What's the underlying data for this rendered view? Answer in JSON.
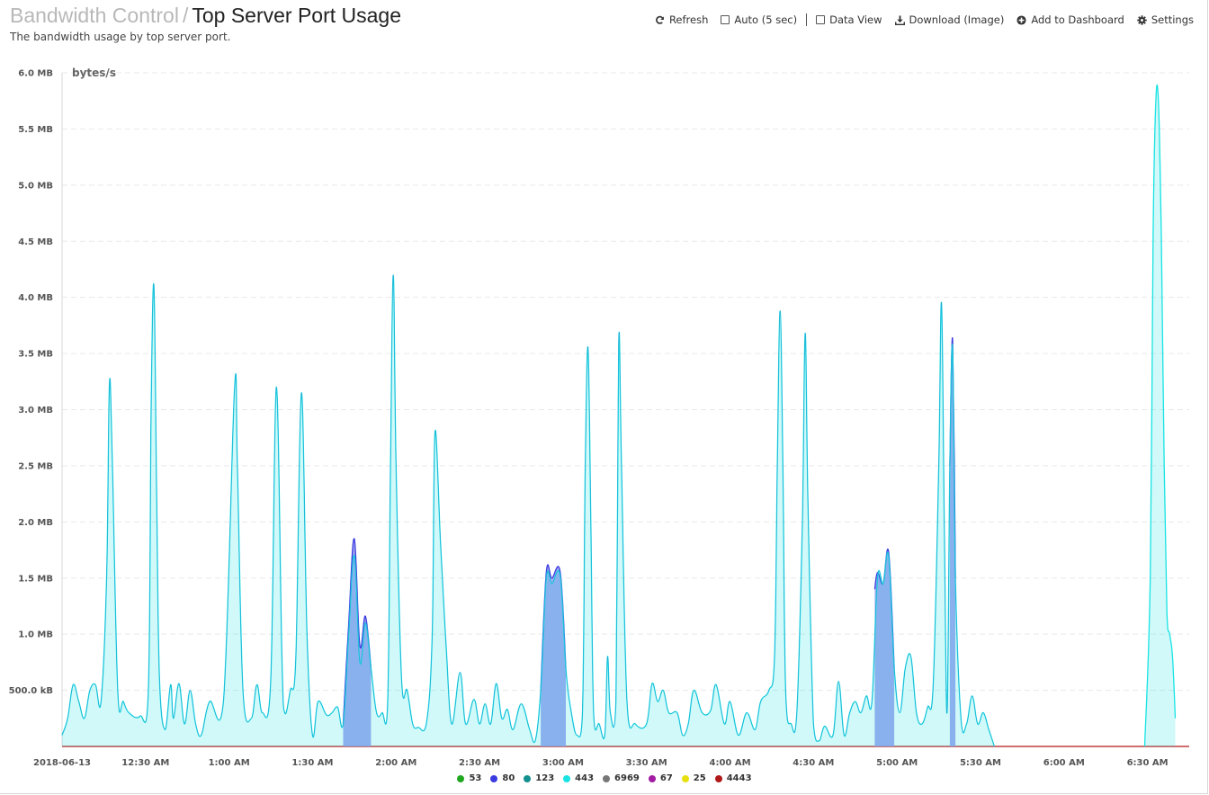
{
  "header": {
    "breadcrumb": "Bandwidth Control",
    "separator": "/",
    "page_title": "Top Server Port Usage",
    "subtitle": "The bandwidth usage by top server port."
  },
  "toolbar": {
    "refresh_label": "Refresh",
    "auto_label": "Auto (5 sec)",
    "data_view_label": "Data View",
    "download_label": "Download (Image)",
    "dashboard_label": "Add to Dashboard",
    "settings_label": "Settings"
  },
  "chart_data": {
    "type": "area",
    "ylabel": "bytes/s",
    "ylim": [
      0,
      6000000
    ],
    "y_tick_values": [
      500000,
      1000000,
      1500000,
      2000000,
      2500000,
      3000000,
      3500000,
      4000000,
      4500000,
      5000000,
      5500000,
      6000000
    ],
    "y_tick_labels": [
      "500.0 kB",
      "1.0 MB",
      "1.5 MB",
      "2.0 MB",
      "2.5 MB",
      "3.0 MB",
      "3.5 MB",
      "4.0 MB",
      "4.5 MB",
      "5.0 MB",
      "5.5 MB",
      "6.0 MB"
    ],
    "x_range_minutes": [
      0,
      405
    ],
    "x_tick_minutes": [
      0,
      30,
      60,
      90,
      120,
      150,
      180,
      210,
      240,
      270,
      300,
      330,
      360,
      390
    ],
    "x_tick_labels": [
      "2018-06-13",
      "12:30 AM",
      "1:00 AM",
      "1:30 AM",
      "2:00 AM",
      "2:30 AM",
      "3:00 AM",
      "3:30 AM",
      "4:00 AM",
      "4:30 AM",
      "5:00 AM",
      "5:30 AM",
      "6:00 AM",
      "6:30 AM"
    ],
    "grid": true,
    "legend_position": "bottom",
    "series": [
      {
        "name": "53",
        "color": "#1fa71f"
      },
      {
        "name": "80",
        "color": "#3b3be0"
      },
      {
        "name": "123",
        "color": "#138f8f"
      },
      {
        "name": "443",
        "color": "#19e3e3"
      },
      {
        "name": "6969",
        "color": "#777777"
      },
      {
        "name": "67",
        "color": "#a31ba3"
      },
      {
        "name": "25",
        "color": "#e8e00e"
      },
      {
        "name": "4443",
        "color": "#b01818"
      }
    ],
    "series_443_points": [
      [
        0,
        100000
      ],
      [
        2,
        250000
      ],
      [
        4,
        550000
      ],
      [
        6,
        400000
      ],
      [
        8,
        250000
      ],
      [
        10,
        500000
      ],
      [
        12,
        550000
      ],
      [
        14,
        400000
      ],
      [
        16,
        1500000
      ],
      [
        17,
        3220000
      ],
      [
        18,
        2600000
      ],
      [
        20,
        500000
      ],
      [
        22,
        400000
      ],
      [
        24,
        300000
      ],
      [
        28,
        270000
      ],
      [
        31,
        500000
      ],
      [
        32,
        3000000
      ],
      [
        33,
        4100000
      ],
      [
        34,
        2200000
      ],
      [
        35,
        600000
      ],
      [
        37,
        150000
      ],
      [
        39,
        550000
      ],
      [
        40,
        250000
      ],
      [
        42,
        560000
      ],
      [
        44,
        200000
      ],
      [
        46,
        500000
      ],
      [
        48,
        200000
      ],
      [
        50,
        100000
      ],
      [
        53,
        400000
      ],
      [
        58,
        400000
      ],
      [
        62,
        3200000
      ],
      [
        63,
        2500000
      ],
      [
        65,
        500000
      ],
      [
        68,
        250000
      ],
      [
        70,
        550000
      ],
      [
        72,
        300000
      ],
      [
        75,
        600000
      ],
      [
        77,
        3200000
      ],
      [
        79,
        800000
      ],
      [
        80,
        300000
      ],
      [
        82,
        500000
      ],
      [
        84,
        800000
      ],
      [
        86,
        3150000
      ],
      [
        88,
        1000000
      ],
      [
        90,
        100000
      ],
      [
        92,
        400000
      ],
      [
        95,
        280000
      ],
      [
        97,
        300000
      ],
      [
        99,
        350000
      ],
      [
        101,
        200000
      ],
      [
        103,
        1000000
      ],
      [
        105,
        1700000
      ],
      [
        107,
        750000
      ],
      [
        109,
        1100000
      ],
      [
        111,
        700000
      ],
      [
        113,
        300000
      ],
      [
        115,
        300000
      ],
      [
        117,
        400000
      ],
      [
        118,
        2500000
      ],
      [
        119,
        4200000
      ],
      [
        120,
        2500000
      ],
      [
        122,
        600000
      ],
      [
        124,
        500000
      ],
      [
        126,
        200000
      ],
      [
        128,
        170000
      ],
      [
        131,
        220000
      ],
      [
        133,
        1000000
      ],
      [
        134,
        2800000
      ],
      [
        136,
        1800000
      ],
      [
        138,
        900000
      ],
      [
        140,
        200000
      ],
      [
        143,
        660000
      ],
      [
        145,
        200000
      ],
      [
        148,
        420000
      ],
      [
        150,
        200000
      ],
      [
        152,
        380000
      ],
      [
        154,
        200000
      ],
      [
        156,
        560000
      ],
      [
        158,
        250000
      ],
      [
        160,
        330000
      ],
      [
        162,
        150000
      ],
      [
        165,
        380000
      ],
      [
        168,
        150000
      ],
      [
        170,
        50000
      ],
      [
        172,
        500000
      ],
      [
        174,
        1500000
      ],
      [
        176,
        1450000
      ],
      [
        179,
        1520000
      ],
      [
        181,
        700000
      ],
      [
        183,
        300000
      ],
      [
        185,
        100000
      ],
      [
        187,
        300000
      ],
      [
        188,
        2500000
      ],
      [
        189,
        3550000
      ],
      [
        190,
        2000000
      ],
      [
        191,
        300000
      ],
      [
        193,
        200000
      ],
      [
        195,
        100000
      ],
      [
        196,
        800000
      ],
      [
        197,
        300000
      ],
      [
        199,
        400000
      ],
      [
        200,
        3600000
      ],
      [
        201,
        2500000
      ],
      [
        203,
        400000
      ],
      [
        206,
        200000
      ],
      [
        210,
        200000
      ],
      [
        212,
        560000
      ],
      [
        214,
        400000
      ],
      [
        216,
        500000
      ],
      [
        218,
        300000
      ],
      [
        221,
        300000
      ],
      [
        223,
        100000
      ],
      [
        225,
        200000
      ],
      [
        227,
        500000
      ],
      [
        230,
        300000
      ],
      [
        233,
        320000
      ],
      [
        235,
        550000
      ],
      [
        238,
        200000
      ],
      [
        240,
        400000
      ],
      [
        243,
        100000
      ],
      [
        246,
        300000
      ],
      [
        249,
        150000
      ],
      [
        251,
        400000
      ],
      [
        254,
        500000
      ],
      [
        256,
        800000
      ],
      [
        257,
        2500000
      ],
      [
        258,
        3880000
      ],
      [
        259,
        2500000
      ],
      [
        260,
        500000
      ],
      [
        262,
        200000
      ],
      [
        264,
        300000
      ],
      [
        266,
        2000000
      ],
      [
        267,
        3680000
      ],
      [
        268,
        2200000
      ],
      [
        270,
        200000
      ],
      [
        272,
        50000
      ],
      [
        274,
        180000
      ],
      [
        277,
        100000
      ],
      [
        279,
        580000
      ],
      [
        281,
        100000
      ],
      [
        283,
        300000
      ],
      [
        285,
        400000
      ],
      [
        287,
        300000
      ],
      [
        289,
        450000
      ],
      [
        291,
        400000
      ],
      [
        293,
        1500000
      ],
      [
        295,
        1450000
      ],
      [
        297,
        1700000
      ],
      [
        299,
        700000
      ],
      [
        301,
        300000
      ],
      [
        303,
        700000
      ],
      [
        305,
        800000
      ],
      [
        307,
        300000
      ],
      [
        309,
        200000
      ],
      [
        311,
        350000
      ],
      [
        313,
        550000
      ],
      [
        315,
        2500000
      ],
      [
        316,
        3950000
      ],
      [
        317,
        2000000
      ],
      [
        318,
        300000
      ],
      [
        319,
        2500000
      ],
      [
        320,
        3550000
      ],
      [
        321,
        1500000
      ],
      [
        323,
        250000
      ],
      [
        325,
        200000
      ],
      [
        327,
        450000
      ],
      [
        329,
        200000
      ],
      [
        331,
        300000
      ],
      [
        333,
        150000
      ],
      [
        335,
        0
      ],
      [
        389,
        0
      ],
      [
        391,
        1500000
      ],
      [
        392,
        4500000
      ],
      [
        393,
        5750000
      ],
      [
        394,
        5700000
      ],
      [
        395,
        4500000
      ],
      [
        396,
        2500000
      ],
      [
        397,
        1200000
      ],
      [
        398,
        1000000
      ],
      [
        399,
        800000
      ],
      [
        400,
        250000
      ]
    ],
    "series_80_points": [
      [
        101,
        200000
      ],
      [
        103,
        1100000
      ],
      [
        105,
        1850000
      ],
      [
        107,
        900000
      ],
      [
        109,
        1160000
      ],
      [
        111,
        700000
      ],
      [
        172,
        500000
      ],
      [
        174,
        1550000
      ],
      [
        176,
        1500000
      ],
      [
        179,
        1550000
      ],
      [
        181,
        700000
      ],
      [
        292,
        1400000
      ],
      [
        293,
        1550000
      ],
      [
        295,
        1450000
      ],
      [
        297,
        1730000
      ],
      [
        299,
        700000
      ],
      [
        319,
        2500000
      ],
      [
        320,
        3620000
      ],
      [
        321,
        1500000
      ]
    ]
  },
  "legend_items": [
    "53",
    "80",
    "123",
    "443",
    "6969",
    "67",
    "25",
    "4443"
  ]
}
